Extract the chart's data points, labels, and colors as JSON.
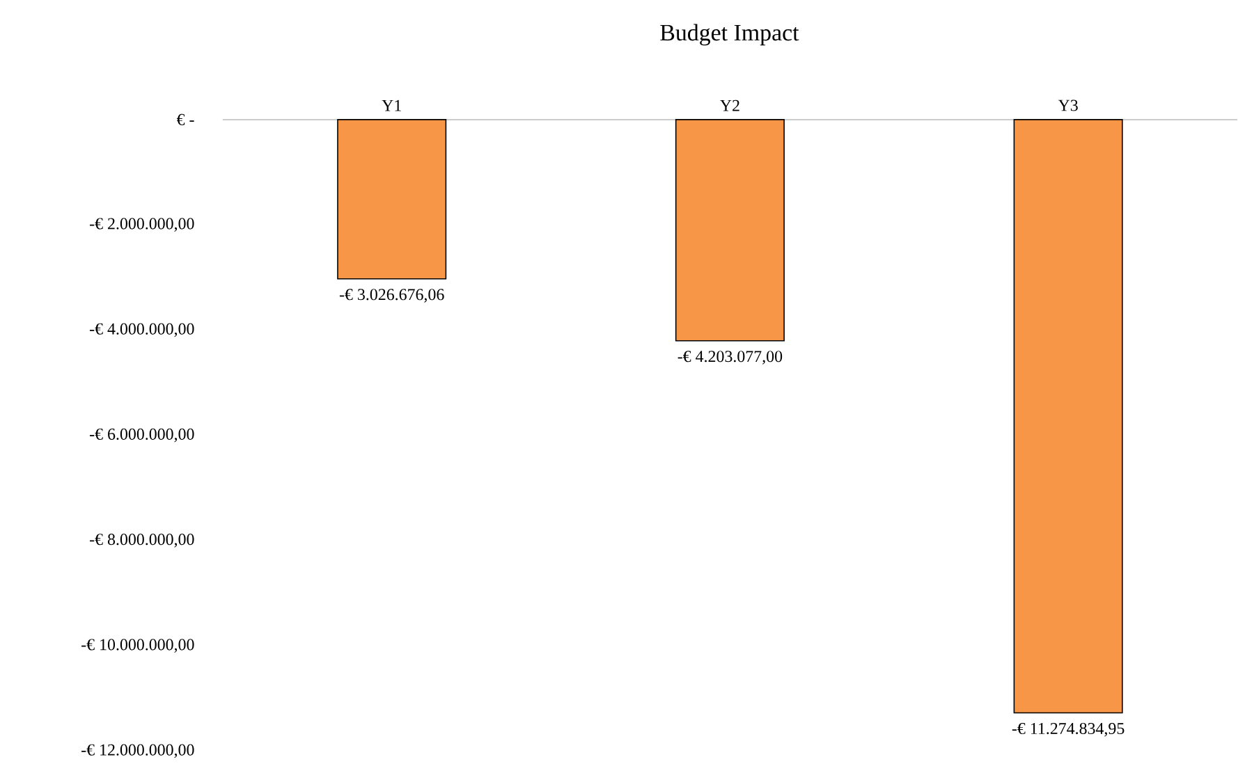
{
  "chart_data": {
    "type": "bar",
    "title": "Budget Impact",
    "categories": [
      "Y1",
      "Y2",
      "Y3"
    ],
    "values": [
      -3026676.06,
      -4203077.0,
      -11274834.95
    ],
    "value_labels": [
      "-€ 3.026.676,06",
      "-€ 4.203.077,00",
      "-€ 11.274.834,95"
    ],
    "color": "#f79646",
    "ylim": [
      -12000000,
      0
    ],
    "yticks": [
      {
        "value": 0,
        "label": "€ -"
      },
      {
        "value": -2000000,
        "label": "-€ 2.000.000,00"
      },
      {
        "value": -4000000,
        "label": "-€ 4.000.000,00"
      },
      {
        "value": -6000000,
        "label": "-€ 6.000.000,00"
      },
      {
        "value": -8000000,
        "label": "-€ 8.000.000,00"
      },
      {
        "value": -10000000,
        "label": "-€ 10.000.000,00"
      },
      {
        "value": -12000000,
        "label": "-€ 12.000.000,00"
      }
    ]
  }
}
